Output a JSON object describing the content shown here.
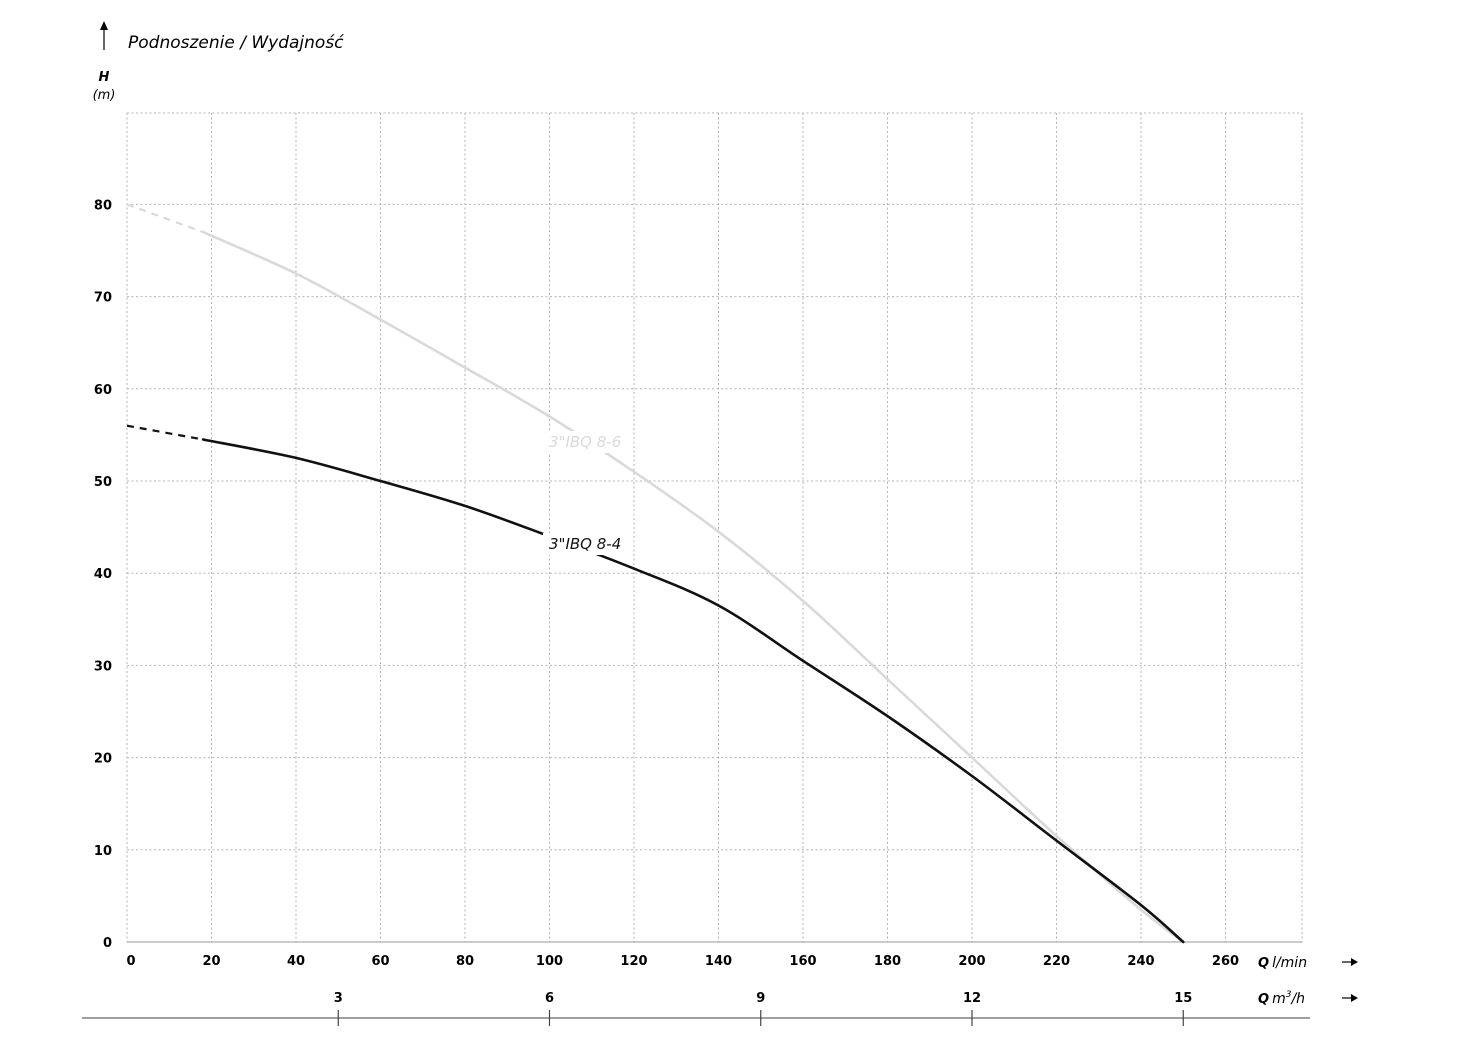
{
  "title": "Podnoszenie / Wydajność",
  "y_axis": {
    "symbol": "H",
    "unit": "(m)"
  },
  "x_axis_lmin": {
    "symbol": "Q",
    "unit": "l/min"
  },
  "x_axis_m3h": {
    "symbol": "Q",
    "unit_base": "m",
    "unit_sup": "3",
    "unit_tail": "/h",
    "ticks": [
      3,
      6,
      9,
      12,
      15
    ]
  },
  "colors": {
    "curve_8_4": "#111111",
    "curve_8_6": "#d9d9d9",
    "grid": "#b3b3b3",
    "axis": "#999999"
  },
  "chart_data": {
    "type": "line",
    "title": "Podnoszenie / Wydajność",
    "xlabel": "Q l/min",
    "ylabel": "H (m)",
    "xlim": [
      0,
      275
    ],
    "ylim": [
      0,
      90
    ],
    "x_ticks": [
      0,
      20,
      40,
      60,
      80,
      100,
      120,
      140,
      160,
      180,
      200,
      220,
      240,
      260
    ],
    "y_ticks": [
      0,
      10,
      20,
      30,
      40,
      50,
      60,
      70,
      80
    ],
    "grid": true,
    "secondary_x": {
      "label": "Q m3/h",
      "ticks": [
        3,
        6,
        9,
        12,
        15
      ]
    },
    "series": [
      {
        "name": "3\"IBQ 8-4",
        "color": "#111111",
        "dashed_until": 18,
        "x": [
          0,
          18,
          40,
          60,
          80,
          100,
          120,
          140,
          160,
          180,
          200,
          220,
          240,
          250
        ],
        "y": [
          56,
          54.5,
          52.5,
          50,
          47.3,
          44,
          40.5,
          36.5,
          30.5,
          24.5,
          18,
          11,
          4,
          0
        ]
      },
      {
        "name": "3\"IBQ 8-6",
        "color": "#d9d9d9",
        "dashed_until": 18,
        "x": [
          0,
          18,
          40,
          60,
          80,
          100,
          120,
          140,
          160,
          180,
          200,
          220,
          240,
          250
        ],
        "y": [
          80,
          77,
          72.5,
          67.5,
          62.3,
          57,
          51,
          44.5,
          37,
          28.5,
          20,
          11.5,
          3.5,
          0
        ]
      }
    ]
  }
}
